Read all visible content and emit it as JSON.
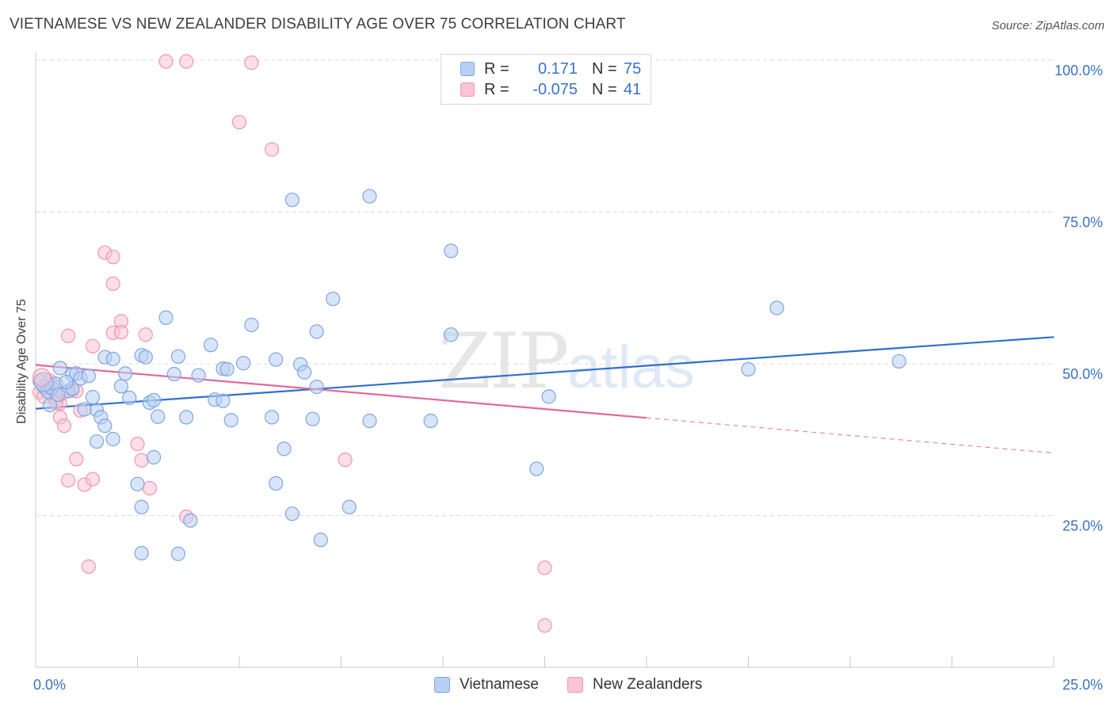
{
  "header": {
    "title": "VIETNAMESE VS NEW ZEALANDER DISABILITY AGE OVER 75 CORRELATION CHART",
    "source": "Source: ZipAtlas.com"
  },
  "watermark": {
    "zip": "ZIP",
    "atlas": "atlas"
  },
  "legend": {
    "rows": [
      {
        "r_label": "R =",
        "r_value": "0.171",
        "n_label": "N =",
        "n_value": "75"
      },
      {
        "r_label": "R =",
        "r_value": "-0.075",
        "n_label": "N =",
        "n_value": "41"
      }
    ]
  },
  "bottom_legend": {
    "series1": "Vietnamese",
    "series2": "New Zealanders"
  },
  "colors": {
    "vietnamese_fill": "#b8d0f3",
    "vietnamese_stroke": "#7ea6e0",
    "vietnamese_line": "#2f6fd0",
    "nz_fill": "#f9c4d3",
    "nz_stroke": "#f095b1",
    "nz_line": "#e2689a",
    "tick_label": "#3a72c8"
  },
  "chart_data": {
    "type": "scatter",
    "ylabel": "Disability Age Over 75",
    "xlim": [
      0,
      25
    ],
    "ylim": [
      0,
      102
    ],
    "x_tick_labels": [
      {
        "x": 0,
        "label": "0.0%"
      },
      {
        "x": 25,
        "label": "25.0%"
      }
    ],
    "y_tick_labels": [
      {
        "y": 25,
        "label": "25.0%"
      },
      {
        "y": 50,
        "label": "50.0%"
      },
      {
        "y": 75,
        "label": "75.0%"
      },
      {
        "y": 100,
        "label": "100.0%"
      }
    ],
    "grid": true,
    "legend_position": "top-center",
    "series": [
      {
        "name": "Vietnamese",
        "r": 0.171,
        "n": 75,
        "trend": {
          "x0": 0,
          "y0": 42.6,
          "x1": 25,
          "y1": 54.4
        },
        "points": [
          [
            0.1,
            47.2
          ],
          [
            0.2,
            46.2
          ],
          [
            0.3,
            45.4
          ],
          [
            0.4,
            46.0
          ],
          [
            0.5,
            46.7
          ],
          [
            0.6,
            49.3
          ],
          [
            0.8,
            45.5
          ],
          [
            0.9,
            45.9
          ],
          [
            0.9,
            48.2
          ],
          [
            1.0,
            48.4
          ],
          [
            1.1,
            47.6
          ],
          [
            1.3,
            48.0
          ],
          [
            1.2,
            42.5
          ],
          [
            1.5,
            42.4
          ],
          [
            1.5,
            37.2
          ],
          [
            1.6,
            41.2
          ],
          [
            1.7,
            39.8
          ],
          [
            1.7,
            51.1
          ],
          [
            1.9,
            50.8
          ],
          [
            1.9,
            37.6
          ],
          [
            2.1,
            46.3
          ],
          [
            2.2,
            48.4
          ],
          [
            2.3,
            44.4
          ],
          [
            2.6,
            51.4
          ],
          [
            2.7,
            51.1
          ],
          [
            2.8,
            43.6
          ],
          [
            2.9,
            44.0
          ],
          [
            3.0,
            41.3
          ],
          [
            2.9,
            34.6
          ],
          [
            3.2,
            57.6
          ],
          [
            3.4,
            48.3
          ],
          [
            3.5,
            51.2
          ],
          [
            3.7,
            41.2
          ],
          [
            3.8,
            24.2
          ],
          [
            4.0,
            48.1
          ],
          [
            4.3,
            53.1
          ],
          [
            4.4,
            44.1
          ],
          [
            4.6,
            49.2
          ],
          [
            4.7,
            49.1
          ],
          [
            4.6,
            43.9
          ],
          [
            4.8,
            40.7
          ],
          [
            5.1,
            50.1
          ],
          [
            5.3,
            56.4
          ],
          [
            5.8,
            41.2
          ],
          [
            5.9,
            50.7
          ],
          [
            5.9,
            30.3
          ],
          [
            6.1,
            36.0
          ],
          [
            6.5,
            49.9
          ],
          [
            6.6,
            48.6
          ],
          [
            6.8,
            40.9
          ],
          [
            6.9,
            46.2
          ],
          [
            6.9,
            55.3
          ],
          [
            7.0,
            21.0
          ],
          [
            6.3,
            25.3
          ],
          [
            7.3,
            60.7
          ],
          [
            7.7,
            26.4
          ],
          [
            6.3,
            77.0
          ],
          [
            8.2,
            77.6
          ],
          [
            8.2,
            40.6
          ],
          [
            9.7,
            40.6
          ],
          [
            10.2,
            68.6
          ],
          [
            10.2,
            54.8
          ],
          [
            12.3,
            32.7
          ],
          [
            12.6,
            44.6
          ],
          [
            18.2,
            59.2
          ],
          [
            17.5,
            49.1
          ],
          [
            21.2,
            50.4
          ],
          [
            2.6,
            26.4
          ],
          [
            2.6,
            18.8
          ],
          [
            3.5,
            18.7
          ],
          [
            2.5,
            30.2
          ],
          [
            1.4,
            44.5
          ],
          [
            0.35,
            43.2
          ],
          [
            0.55,
            44.9
          ],
          [
            0.75,
            47.0
          ]
        ]
      },
      {
        "name": "New Zealanders",
        "r": -0.075,
        "n": 41,
        "trend_solid": {
          "x0": 0,
          "y0": 49.8,
          "x1": 15,
          "y1": 41.1
        },
        "trend_dashed": {
          "x0": 15,
          "y0": 41.1,
          "x1": 25,
          "y1": 35.3
        },
        "points": [
          [
            0.1,
            45.3
          ],
          [
            0.3,
            45.8
          ],
          [
            0.4,
            44.9
          ],
          [
            0.5,
            44.2
          ],
          [
            0.6,
            43.5
          ],
          [
            0.6,
            41.2
          ],
          [
            0.7,
            39.8
          ],
          [
            0.8,
            30.8
          ],
          [
            0.8,
            54.6
          ],
          [
            0.9,
            45.6
          ],
          [
            1.0,
            34.3
          ],
          [
            1.1,
            42.3
          ],
          [
            1.2,
            30.1
          ],
          [
            1.3,
            16.6
          ],
          [
            1.4,
            31.0
          ],
          [
            1.4,
            52.9
          ],
          [
            1.7,
            68.3
          ],
          [
            1.9,
            67.6
          ],
          [
            1.9,
            63.2
          ],
          [
            1.9,
            55.1
          ],
          [
            2.1,
            57.0
          ],
          [
            2.1,
            55.2
          ],
          [
            2.5,
            36.8
          ],
          [
            2.6,
            34.1
          ],
          [
            2.7,
            54.8
          ],
          [
            2.8,
            29.5
          ],
          [
            3.2,
            99.8
          ],
          [
            3.7,
            99.8
          ],
          [
            3.7,
            24.8
          ],
          [
            5.0,
            89.8
          ],
          [
            5.3,
            99.6
          ],
          [
            5.8,
            85.3
          ],
          [
            7.6,
            34.2
          ],
          [
            12.5,
            16.4
          ],
          [
            12.5,
            6.9
          ],
          [
            0.2,
            44.6
          ],
          [
            0.45,
            46.4
          ],
          [
            0.65,
            45.1
          ],
          [
            1.0,
            45.5
          ],
          [
            0.35,
            47.2
          ],
          [
            0.5,
            43.6
          ]
        ]
      }
    ]
  }
}
